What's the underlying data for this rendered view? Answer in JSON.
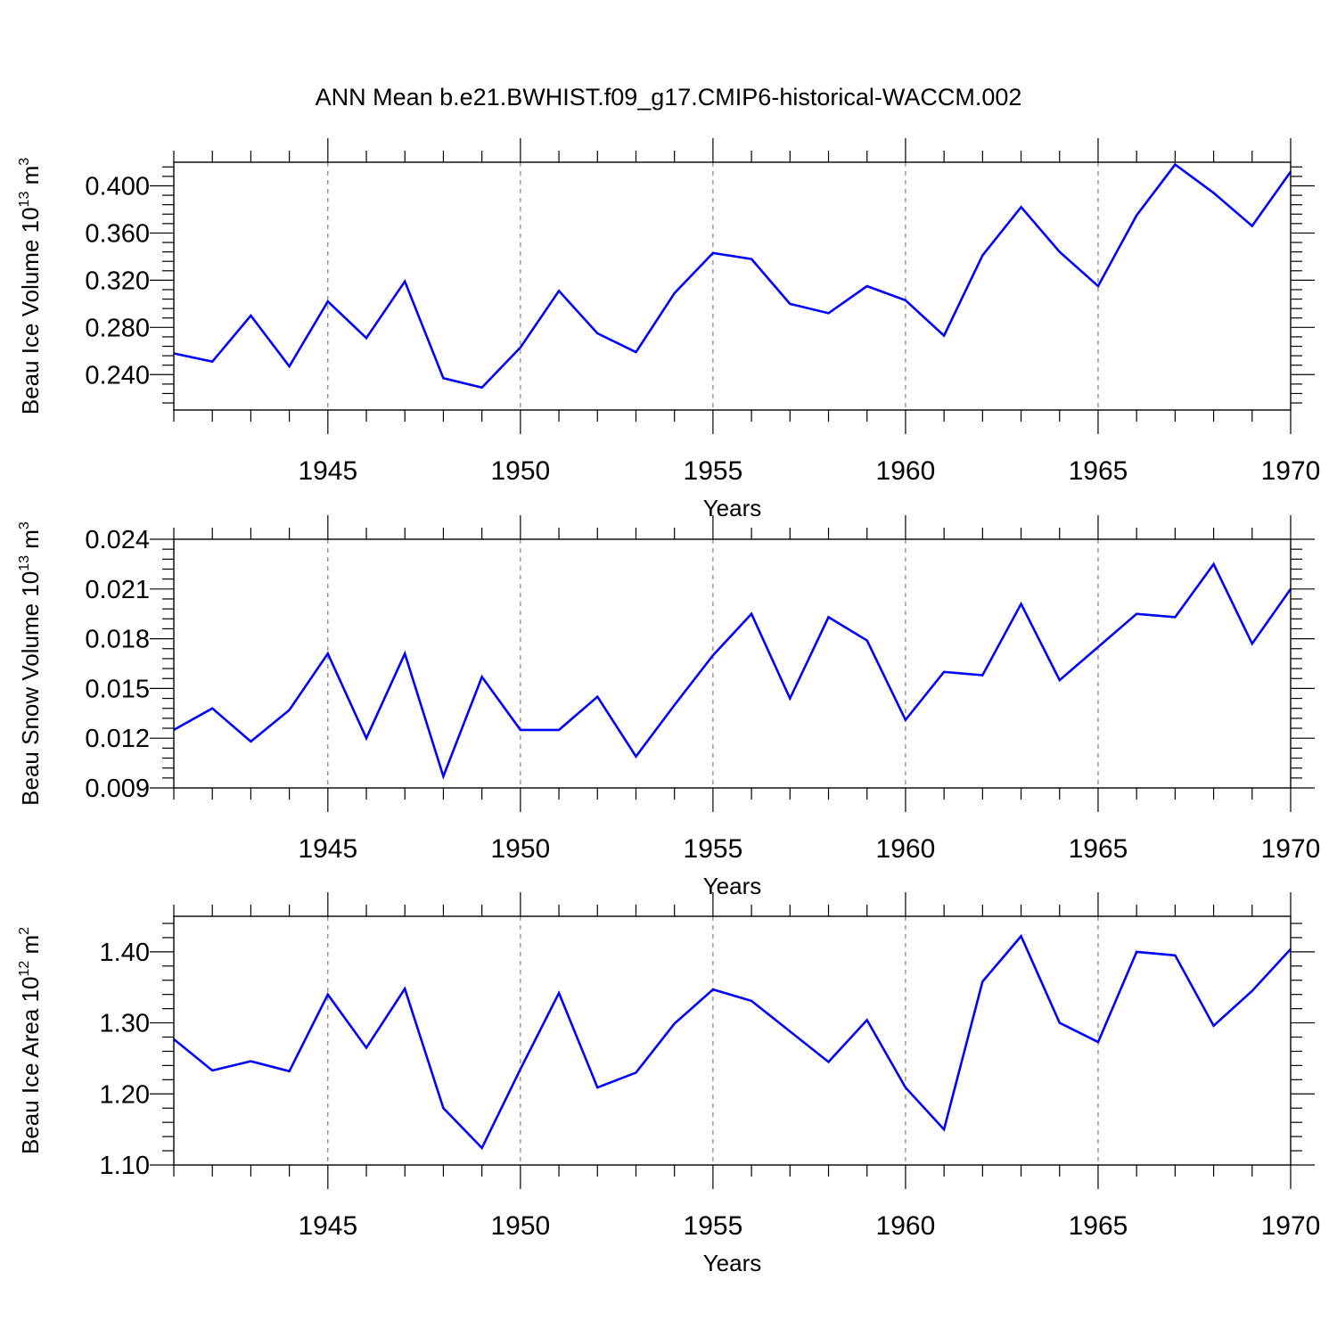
{
  "title": "ANN Mean b.e21.BWHIST.f09_g17.CMIP6-historical-WACCM.002",
  "colors": {
    "line": "#0000ff",
    "axis": "#000000",
    "grid": "#666666"
  },
  "chart_data": [
    {
      "type": "line",
      "ylabel": {
        "text": "Beau Ice Volume 10",
        "exp": "13",
        "unit": "m",
        "unit_exp": "3"
      },
      "xlabel": "Years",
      "xlim": [
        1941,
        1970
      ],
      "ylim": [
        0.21,
        0.42
      ],
      "yticks": [
        0.24,
        0.28,
        0.32,
        0.36,
        0.4
      ],
      "ytick_labels": [
        "0.240",
        "0.280",
        "0.320",
        "0.360",
        "0.400"
      ],
      "xticks": [
        1945,
        1950,
        1955,
        1960,
        1965,
        1970
      ],
      "xtick_labels": [
        "1945",
        "1950",
        "1955",
        "1960",
        "1965",
        "1970"
      ],
      "x": [
        1941,
        1942,
        1943,
        1944,
        1945,
        1946,
        1947,
        1948,
        1949,
        1950,
        1951,
        1952,
        1953,
        1954,
        1955,
        1956,
        1957,
        1958,
        1959,
        1960,
        1961,
        1962,
        1963,
        1964,
        1965,
        1966,
        1967,
        1968,
        1969,
        1970
      ],
      "values": [
        0.258,
        0.251,
        0.29,
        0.247,
        0.302,
        0.271,
        0.319,
        0.237,
        0.229,
        0.263,
        0.311,
        0.275,
        0.259,
        0.309,
        0.343,
        0.338,
        0.3,
        0.292,
        0.315,
        0.303,
        0.273,
        0.341,
        0.382,
        0.344,
        0.315,
        0.375,
        0.418,
        0.394,
        0.366,
        0.412
      ]
    },
    {
      "type": "line",
      "ylabel": {
        "text": "Beau Snow Volume 10",
        "exp": "13",
        "unit": "m",
        "unit_exp": "3"
      },
      "xlabel": "Years",
      "xlim": [
        1941,
        1970
      ],
      "ylim": [
        0.009,
        0.024
      ],
      "yticks": [
        0.009,
        0.012,
        0.015,
        0.018,
        0.021,
        0.024
      ],
      "ytick_labels": [
        "0.009",
        "0.012",
        "0.015",
        "0.018",
        "0.021",
        "0.024"
      ],
      "xticks": [
        1945,
        1950,
        1955,
        1960,
        1965,
        1970
      ],
      "xtick_labels": [
        "1945",
        "1950",
        "1955",
        "1960",
        "1965",
        "1970"
      ],
      "x": [
        1941,
        1942,
        1943,
        1944,
        1945,
        1946,
        1947,
        1948,
        1949,
        1950,
        1951,
        1952,
        1953,
        1954,
        1955,
        1956,
        1957,
        1958,
        1959,
        1960,
        1961,
        1962,
        1963,
        1964,
        1965,
        1966,
        1967,
        1968,
        1969,
        1970
      ],
      "values": [
        0.0125,
        0.0138,
        0.0118,
        0.0137,
        0.0171,
        0.012,
        0.0171,
        0.0097,
        0.0157,
        0.0125,
        0.0125,
        0.0145,
        0.0109,
        0.014,
        0.017,
        0.0195,
        0.0144,
        0.0193,
        0.0179,
        0.0131,
        0.016,
        0.0158,
        0.0201,
        0.0155,
        0.0175,
        0.0195,
        0.0193,
        0.0225,
        0.0177,
        0.021
      ]
    },
    {
      "type": "line",
      "ylabel": {
        "text": "Beau Ice Area 10",
        "exp": "12",
        "unit": "m",
        "unit_exp": "2"
      },
      "xlabel": "Years",
      "xlim": [
        1941,
        1970
      ],
      "ylim": [
        1.1,
        1.45
      ],
      "yticks": [
        1.1,
        1.2,
        1.3,
        1.4
      ],
      "ytick_labels": [
        "1.10",
        "1.20",
        "1.30",
        "1.40"
      ],
      "xticks": [
        1945,
        1950,
        1955,
        1960,
        1965,
        1970
      ],
      "xtick_labels": [
        "1945",
        "1950",
        "1955",
        "1960",
        "1965",
        "1970"
      ],
      "x": [
        1941,
        1942,
        1943,
        1944,
        1945,
        1946,
        1947,
        1948,
        1949,
        1950,
        1951,
        1952,
        1953,
        1954,
        1955,
        1956,
        1957,
        1958,
        1959,
        1960,
        1961,
        1962,
        1963,
        1964,
        1965,
        1966,
        1967,
        1968,
        1969,
        1970
      ],
      "values": [
        1.277,
        1.233,
        1.246,
        1.232,
        1.34,
        1.265,
        1.348,
        1.18,
        1.124,
        1.235,
        1.342,
        1.209,
        1.23,
        1.299,
        1.347,
        1.331,
        1.288,
        1.245,
        1.304,
        1.209,
        1.15,
        1.358,
        1.422,
        1.3,
        1.273,
        1.4,
        1.395,
        1.296,
        1.345,
        1.404
      ]
    }
  ]
}
